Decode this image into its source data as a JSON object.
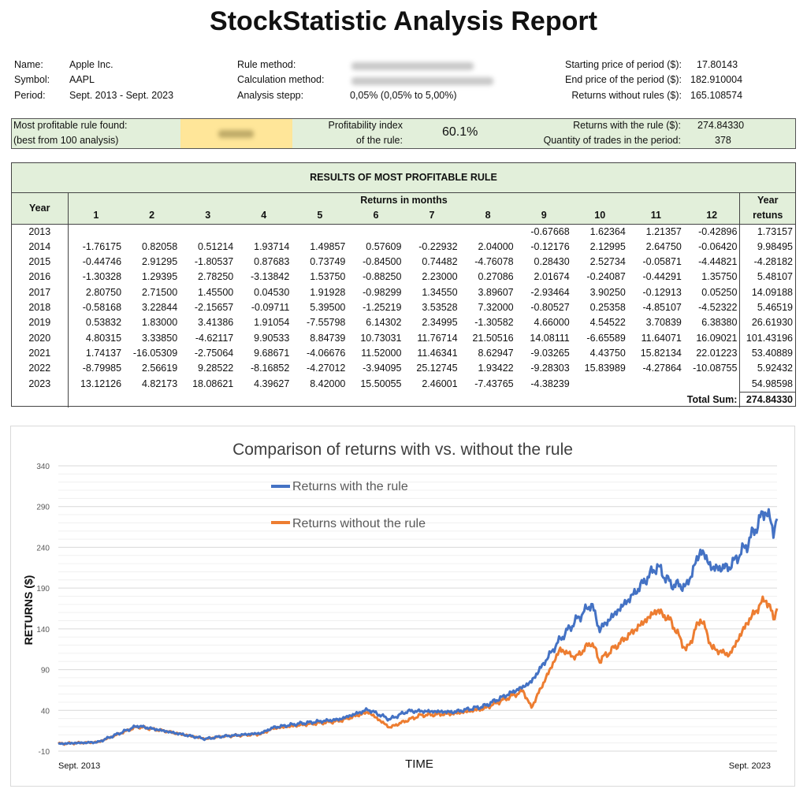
{
  "title": "StockStatistic Analysis Report",
  "info": {
    "name_label": "Name:",
    "name": "Apple Inc.",
    "symbol_label": "Symbol:",
    "symbol": "AAPL",
    "period_label": "Period:",
    "period": "Sept. 2013 - Sept. 2023",
    "rule_method_label": "Rule method:",
    "calc_method_label": "Calculation method:",
    "step_label": "Analysis stepp:",
    "step": "0,05% (0,05% to 5,00%)",
    "start_price_label": "Starting price of period ($):",
    "start_price": "17.80143",
    "end_price_label": "End price of the period ($):",
    "end_price": "182.910004",
    "returns_without_label": "Returns without rules ($):",
    "returns_without": "165.108574"
  },
  "summary": {
    "best_label_1": "Most profitable rule found:",
    "best_label_2": "(best from 100 analysis)",
    "index_label_1": "Profitability index",
    "index_label_2": "of the rule:",
    "index_value": "60.1%",
    "returns_with_label": "Returns with the rule ($):",
    "returns_with": "274.84330",
    "trades_label": "Quantity of trades in the period:",
    "trades": "378"
  },
  "results": {
    "title": "RESULTS OF MOST PROFITABLE RULE",
    "year_header": "Year",
    "months_header": "Returns in months",
    "months": [
      "1",
      "2",
      "3",
      "4",
      "5",
      "6",
      "7",
      "8",
      "9",
      "10",
      "11",
      "12"
    ],
    "year_returns_header_1": "Year",
    "year_returns_header_2": "retuns",
    "rows": [
      {
        "year": "2013",
        "m": [
          "",
          "",
          "",
          "",
          "",
          "",
          "",
          "",
          "-0.67668",
          "1.62364",
          "1.21357",
          "-0.42896"
        ],
        "total": "1.73157"
      },
      {
        "year": "2014",
        "m": [
          "-1.76175",
          "0.82058",
          "0.51214",
          "1.93714",
          "1.49857",
          "0.57609",
          "-0.22932",
          "2.04000",
          "-0.12176",
          "2.12995",
          "2.64750",
          "-0.06420"
        ],
        "total": "9.98495"
      },
      {
        "year": "2015",
        "m": [
          "-0.44746",
          "2.91295",
          "-1.80537",
          "0.87683",
          "0.73749",
          "-0.84500",
          "0.74482",
          "-4.76078",
          "0.28430",
          "2.52734",
          "-0.05871",
          "-4.44821"
        ],
        "total": "-4.28182"
      },
      {
        "year": "2016",
        "m": [
          "-1.30328",
          "1.29395",
          "2.78250",
          "-3.13842",
          "1.53750",
          "-0.88250",
          "2.23000",
          "0.27086",
          "2.01674",
          "-0.24087",
          "-0.44291",
          "1.35750"
        ],
        "total": "5.48107"
      },
      {
        "year": "2017",
        "m": [
          "2.80750",
          "2.71500",
          "1.45500",
          "0.04530",
          "1.91928",
          "-0.98299",
          "1.34550",
          "3.89607",
          "-2.93464",
          "3.90250",
          "-0.12913",
          "0.05250"
        ],
        "total": "14.09188"
      },
      {
        "year": "2018",
        "m": [
          "-0.58168",
          "3.22844",
          "-2.15657",
          "-0.09711",
          "5.39500",
          "-1.25219",
          "3.53528",
          "7.32000",
          "-0.80527",
          "0.25358",
          "-4.85107",
          "-4.52322"
        ],
        "total": "5.46519"
      },
      {
        "year": "2019",
        "m": [
          "0.53832",
          "1.83000",
          "3.41386",
          "1.91054",
          "-7.55798",
          "6.14302",
          "2.34995",
          "-1.30582",
          "4.66000",
          "4.54522",
          "3.70839",
          "6.38380"
        ],
        "total": "26.61930"
      },
      {
        "year": "2020",
        "m": [
          "4.80315",
          "3.33850",
          "-4.62117",
          "9.90533",
          "8.84739",
          "10.73031",
          "11.76714",
          "21.50516",
          "14.08111",
          "-6.65589",
          "11.64071",
          "16.09021"
        ],
        "total": "101.43196"
      },
      {
        "year": "2021",
        "m": [
          "1.74137",
          "-16.05309",
          "-2.75064",
          "9.68671",
          "-4.06676",
          "11.52000",
          "11.46341",
          "8.62947",
          "-9.03265",
          "4.43750",
          "15.82134",
          "22.01223"
        ],
        "total": "53.40889"
      },
      {
        "year": "2022",
        "m": [
          "-8.79985",
          "2.56619",
          "9.28522",
          "-8.16852",
          "-4.27012",
          "-3.94095",
          "25.12745",
          "1.93422",
          "-9.28303",
          "15.83989",
          "-4.27864",
          "-10.08755"
        ],
        "total": "5.92432"
      },
      {
        "year": "2023",
        "m": [
          "13.12126",
          "4.82173",
          "18.08621",
          "4.39627",
          "8.42000",
          "15.50055",
          "2.46001",
          "-7.43765",
          "-4.38239",
          "",
          "",
          ""
        ],
        "total": "54.98598"
      }
    ],
    "total_label": "Total Sum:",
    "total_value": "274.84330"
  },
  "chart_data": {
    "type": "line",
    "title": "Comparison of returns with vs. without the rule",
    "xlabel": "TIME",
    "ylabel": "RETURNS ($)",
    "x_start_label": "Sept. 2013",
    "x_end_label": "Sept. 2023",
    "ylim": [
      -10,
      340
    ],
    "yticks": [
      "340",
      "290",
      "240",
      "190",
      "140",
      "90",
      "40",
      "-10"
    ],
    "grid": true,
    "legend_position": "top-center",
    "x_years_since_start": [
      0,
      0.55,
      1.1,
      1.46,
      2.05,
      2.27,
      2.82,
      2.99,
      3.37,
      3.91,
      4.31,
      4.61,
      4.86,
      5.04,
      5.5,
      5.92,
      6.47,
      6.58,
      6.98,
      7.2,
      7.42,
      7.53,
      8.0,
      8.33,
      8.52,
      8.74,
      8.94,
      9.1,
      9.34,
      9.58,
      9.84,
      9.95,
      10
    ],
    "series": [
      {
        "name": "Returns with the rule",
        "color": "#4472c4",
        "values": [
          -1,
          1,
          21,
          15,
          5,
          8,
          12,
          19,
          24,
          29,
          41,
          29,
          39,
          39,
          38,
          45,
          69,
          75,
          127,
          150,
          171,
          139,
          182,
          217,
          195,
          192,
          237,
          214,
          216,
          243,
          287,
          261,
          275
        ]
      },
      {
        "name": "Returns without the rule",
        "color": "#ed7d31",
        "values": [
          -1,
          1,
          20,
          15,
          5,
          8,
          11,
          18,
          22,
          27,
          38,
          19,
          28,
          34,
          36,
          42,
          64,
          43,
          115,
          105,
          124,
          101,
          137,
          163,
          150,
          113,
          154,
          116,
          108,
          147,
          178,
          154,
          165
        ]
      }
    ]
  }
}
